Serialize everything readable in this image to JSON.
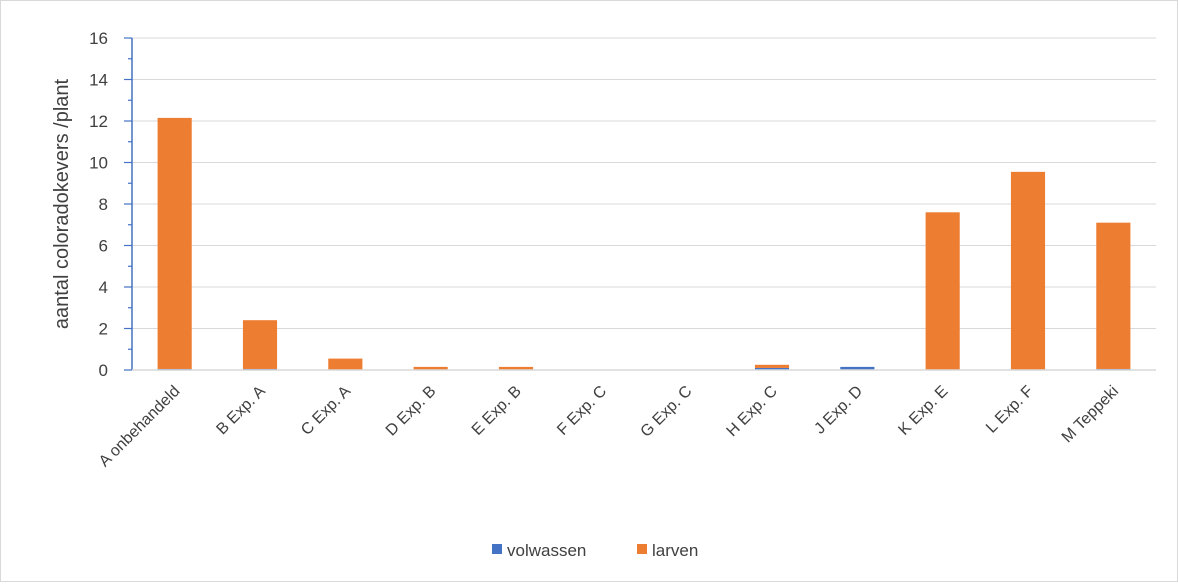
{
  "chart_data": {
    "type": "bar",
    "stacked": true,
    "title": "",
    "xlabel": "",
    "ylabel": "aantal coloradokevers /plant",
    "ylim": [
      0,
      16
    ],
    "yticks": [
      0,
      2,
      4,
      6,
      8,
      10,
      12,
      14,
      16
    ],
    "grid": true,
    "legend_position": "bottom",
    "categories": [
      "A onbehandeld",
      "B Exp. A",
      "C Exp. A",
      "D Exp. B",
      "E Exp. B",
      "F Exp. C",
      "G Exp. C",
      "H Exp. C",
      "J Exp. D",
      "K Exp. E",
      "L Exp. F",
      "M Teppeki"
    ],
    "series": [
      {
        "name": "volwassen",
        "color": "#4472c4",
        "values": [
          0.05,
          0.05,
          0,
          0,
          0,
          0,
          0,
          0.1,
          0.15,
          0,
          0,
          0.05
        ]
      },
      {
        "name": "larven",
        "color": "#ed7d31",
        "values": [
          12.1,
          2.35,
          0.55,
          0.15,
          0.15,
          0.02,
          0.02,
          0.15,
          0,
          7.6,
          9.55,
          7.05
        ]
      }
    ]
  }
}
